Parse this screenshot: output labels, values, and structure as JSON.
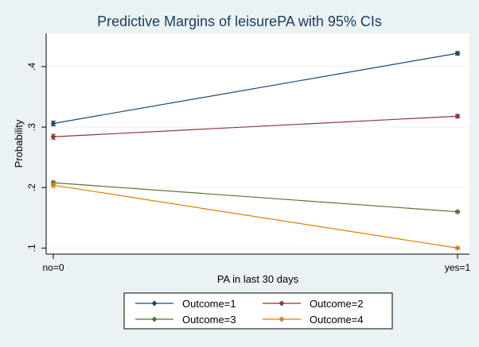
{
  "chart_data": {
    "type": "line",
    "title": "Predictive Margins of leisurePA with 95% CIs",
    "xlabel": "PA in last 30 days",
    "ylabel": "Probability",
    "categories": [
      "no=0",
      "yes=1"
    ],
    "yticks": [
      ".1",
      ".2",
      ".3",
      ".4"
    ],
    "ytick_values": [
      0.1,
      0.2,
      0.3,
      0.4
    ],
    "ylim": [
      0.09,
      0.455
    ],
    "legend_placement": "bottom",
    "series": [
      {
        "name": "Outcome=1",
        "values": [
          0.306,
          0.422
        ],
        "ci": [
          [
            0.302,
            0.31
          ],
          [
            0.419,
            0.425
          ]
        ],
        "color": "#1a476f"
      },
      {
        "name": "Outcome=2",
        "values": [
          0.284,
          0.318
        ],
        "ci": [
          [
            0.28,
            0.288
          ],
          [
            0.315,
            0.321
          ]
        ],
        "color": "#90353b"
      },
      {
        "name": "Outcome=3",
        "values": [
          0.208,
          0.16
        ],
        "ci": [
          [
            0.205,
            0.211
          ],
          [
            0.158,
            0.162
          ]
        ],
        "color": "#55752f"
      },
      {
        "name": "Outcome=4",
        "values": [
          0.204,
          0.1
        ],
        "ci": [
          [
            0.2,
            0.207
          ],
          [
            0.098,
            0.102
          ]
        ],
        "color": "#e37e00"
      }
    ]
  }
}
